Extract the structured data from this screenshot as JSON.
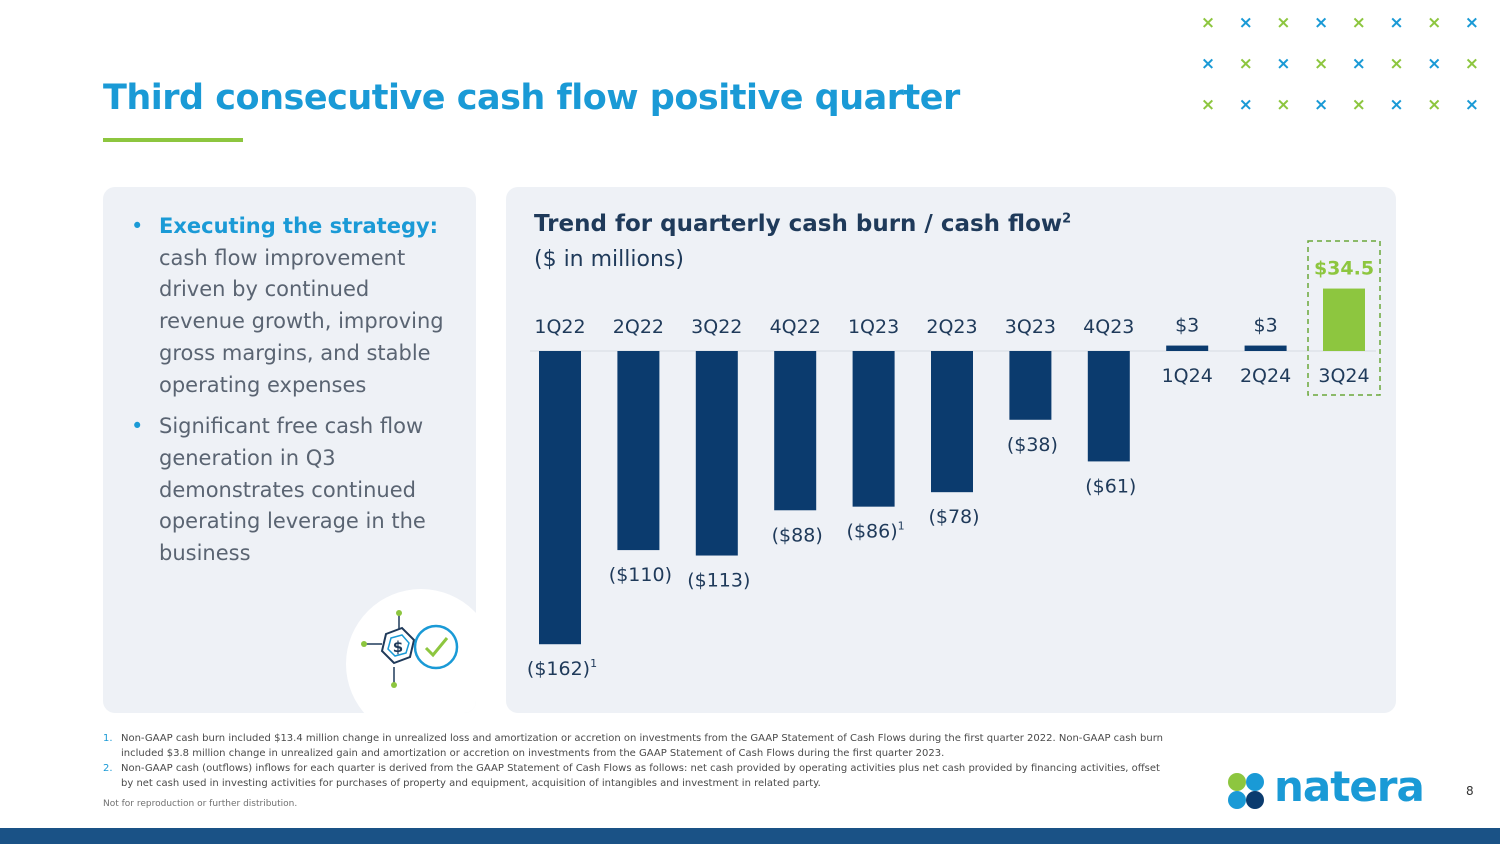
{
  "page": {
    "title": "Third consecutive cash flow positive quarter",
    "page_number": "8",
    "disclaimer": "Not for reproduction or further distribution.",
    "logo_text": "natera",
    "accent": "#1a9ad6",
    "green": "#8dc63f",
    "navy": "#0b3b6e"
  },
  "bullets": [
    {
      "lead": "Executing the strategy:",
      "text": " cash flow improvement driven by continued revenue growth, improving gross margins, and stable operating expenses"
    },
    {
      "lead": "",
      "text": "Significant free cash flow generation in Q3 demonstrates continued operating leverage in the business"
    }
  ],
  "bullet_char": "•",
  "icon": {
    "name": "dollar-check-icon",
    "symbol": "$"
  },
  "footnotes": [
    {
      "num": "1.",
      "text": "Non-GAAP cash burn included $13.4 million change in unrealized loss and amortization or accretion on investments from the GAAP Statement of Cash Flows during the first quarter 2022. Non-GAAP cash burn included $3.8 million change in unrealized gain and amortization or accretion on investments from the GAAP Statement of Cash Flows during the first quarter 2023."
    },
    {
      "num": "2.",
      "text": "Non-GAAP cash (outflows) inflows for each quarter is derived from the GAAP Statement of Cash Flows as follows: net cash provided by operating activities plus net cash provided by financing activities, offset by net cash used in investing activities for purchases of property and equipment, acquisition of intangibles and investment in related party."
    }
  ],
  "chart_data": {
    "type": "bar",
    "title": "Trend for quarterly cash burn / cash flow",
    "title_superscript": "2",
    "subtitle": "($ in millions)",
    "categories": [
      "1Q22",
      "2Q22",
      "3Q22",
      "4Q22",
      "1Q23",
      "2Q23",
      "3Q23",
      "4Q23",
      "1Q24",
      "2Q24",
      "3Q24"
    ],
    "values": [
      -162,
      -110,
      -113,
      -88,
      -86,
      -78,
      -38,
      -61,
      3,
      3,
      34.5
    ],
    "labels": [
      "($162)",
      "($110)",
      "($113)",
      "($88)",
      "($86)",
      "($78)",
      "($38)",
      "($61)",
      "$3",
      "$3",
      "$34.5"
    ],
    "label_superscripts": [
      "1",
      "",
      "",
      "",
      "1",
      "",
      "",
      "",
      "",
      "",
      ""
    ],
    "highlight_index": 10,
    "xlabel": "",
    "ylabel": "",
    "grid": false
  }
}
